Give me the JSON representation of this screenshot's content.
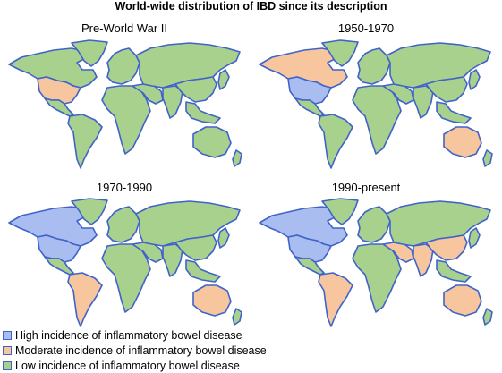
{
  "title": "World-wide distribution of IBD since its description",
  "colors": {
    "border": "#3f63c9",
    "high": "#a9bdf1",
    "moderate": "#f7c59e",
    "low": "#a9d18e"
  },
  "panels": [
    {
      "label": "Pre-World War II",
      "regions": {
        "north_america": "low",
        "usa": "moderate",
        "greenland": "low",
        "latin_america": "low",
        "south_america": "low",
        "europe": "low",
        "africa": "low",
        "middle_east": "low",
        "asia": "low",
        "india": "low",
        "china": "low",
        "japan": "low",
        "southeast_asia": "low",
        "australia": "low",
        "new_zealand": "low"
      }
    },
    {
      "label": "1950-1970",
      "regions": {
        "north_america": "moderate",
        "usa": "high",
        "greenland": "low",
        "latin_america": "low",
        "south_america": "low",
        "europe": "low",
        "africa": "low",
        "middle_east": "low",
        "asia": "low",
        "india": "low",
        "china": "low",
        "japan": "low",
        "southeast_asia": "low",
        "australia": "moderate",
        "new_zealand": "low"
      }
    },
    {
      "label": "1970-1990",
      "regions": {
        "north_america": "high",
        "usa": "high",
        "greenland": "low",
        "latin_america": "low",
        "south_america": "moderate",
        "europe": "low",
        "africa": "low",
        "middle_east": "low",
        "asia": "low",
        "india": "low",
        "china": "low",
        "japan": "low",
        "southeast_asia": "low",
        "australia": "moderate",
        "new_zealand": "low"
      }
    },
    {
      "label": "1990-present",
      "regions": {
        "north_america": "high",
        "usa": "high",
        "greenland": "low",
        "latin_america": "low",
        "south_america": "moderate",
        "europe": "low",
        "africa": "low",
        "middle_east": "moderate",
        "asia": "low",
        "india": "moderate",
        "china": "moderate",
        "japan": "low",
        "southeast_asia": "low",
        "australia": "moderate",
        "new_zealand": "low"
      }
    }
  ],
  "legend": [
    {
      "key": "high",
      "label": "High incidence of inflammatory bowel disease"
    },
    {
      "key": "moderate",
      "label": "Moderate incidence of inflammatory bowel disease"
    },
    {
      "key": "low",
      "label": "Low incidence of inflammatory bowel disease"
    }
  ]
}
